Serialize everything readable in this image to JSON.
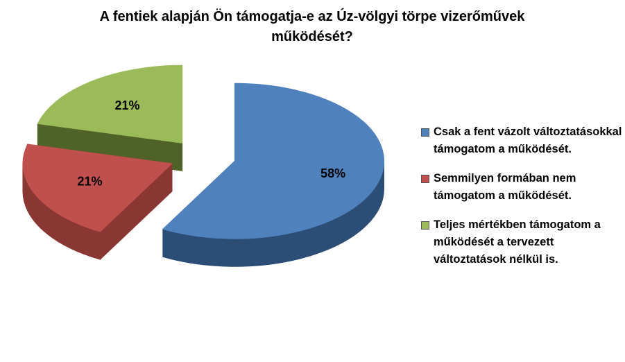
{
  "chart_data": {
    "type": "pie3d",
    "title": "A fentiek alapján Ön támogatja-e az Úz-völgyi törpe vizerőművek működését?",
    "categories": [
      "Csak a fent vázolt változtatásokkal támogatom a működését.",
      "Semmilyen formában nem támogatom a működését.",
      "Teljes mértékben támogatom a működését a tervezett változtatások nélkül is."
    ],
    "values": [
      58,
      21,
      21
    ],
    "value_labels": [
      "58%",
      "21%",
      "21%"
    ],
    "colors": [
      "#4f81bd",
      "#c0504d",
      "#9bbb59"
    ],
    "side_colors": [
      "#2c4d75",
      "#8a3633",
      "#4f6228"
    ],
    "legend": "right"
  }
}
